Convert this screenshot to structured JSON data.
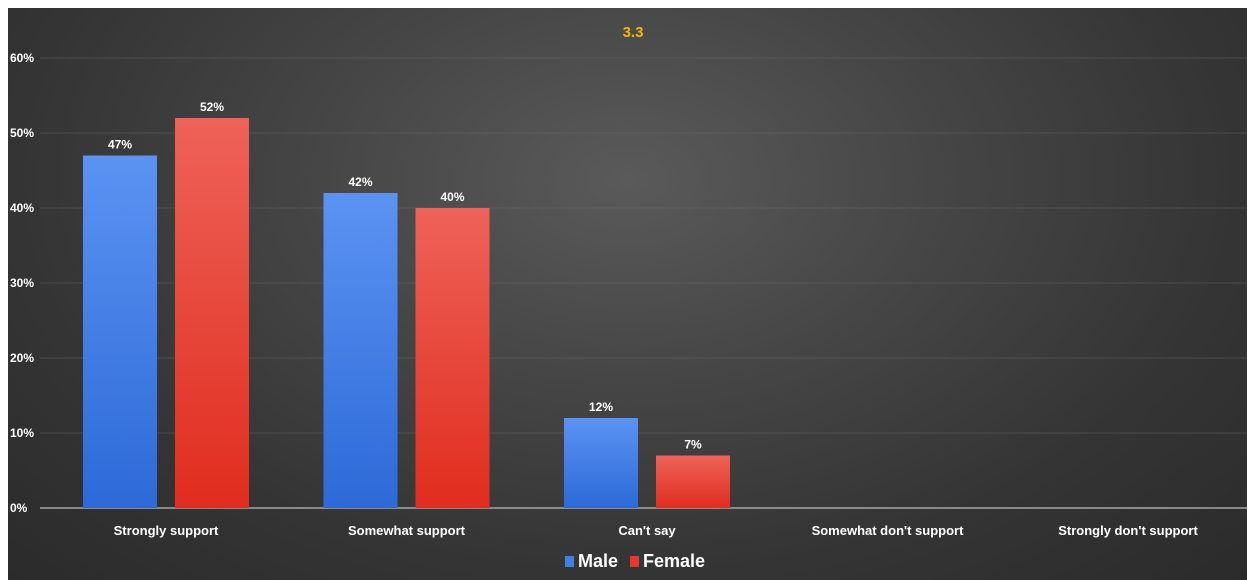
{
  "chart_data": {
    "type": "bar",
    "title": "3.3",
    "categories": [
      "Strongly support",
      "Somewhat support",
      "Can't say",
      "Somewhat don't support",
      "Strongly don't support"
    ],
    "series": [
      {
        "name": "Male",
        "values": [
          47,
          42,
          12,
          null,
          null
        ],
        "labels": [
          "47%",
          "42%",
          "12%",
          "",
          ""
        ],
        "color": "#3f7fe8"
      },
      {
        "name": "Female",
        "values": [
          52,
          40,
          7,
          null,
          null
        ],
        "labels": [
          "52%",
          "40%",
          "7%",
          "",
          ""
        ],
        "color": "#e8382b"
      }
    ],
    "ylim": [
      0,
      60
    ],
    "yticks": [
      0,
      10,
      20,
      30,
      40,
      50,
      60
    ],
    "ytick_labels": [
      "0%",
      "10%",
      "20%",
      "30%",
      "40%",
      "50%",
      "60%"
    ],
    "xlabel": "",
    "ylabel": "",
    "grid": true,
    "legend_position": "bottom"
  }
}
